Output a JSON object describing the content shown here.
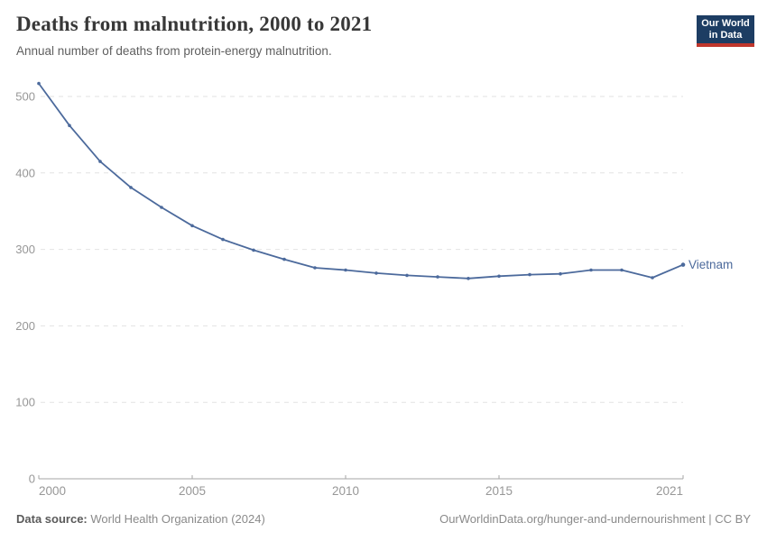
{
  "header": {
    "title": "Deaths from malnutrition, 2000 to 2021",
    "subtitle": "Annual number of deaths from protein-energy malnutrition."
  },
  "logo": {
    "line1": "Our World",
    "line2": "in Data",
    "bg_color": "#1d3d63",
    "stripe_color": "#c0362c"
  },
  "chart_data": {
    "type": "line",
    "title": "Deaths from malnutrition, 2000 to 2021",
    "subtitle": "Annual number of deaths from protein-energy malnutrition.",
    "xlabel": "",
    "ylabel": "",
    "x": [
      2000,
      2001,
      2002,
      2003,
      2004,
      2005,
      2006,
      2007,
      2008,
      2009,
      2010,
      2011,
      2012,
      2013,
      2014,
      2015,
      2016,
      2017,
      2018,
      2019,
      2020,
      2021
    ],
    "series": [
      {
        "name": "Vietnam",
        "color": "#4C6A9C",
        "values": [
          517,
          462,
          415,
          381,
          355,
          331,
          313,
          299,
          287,
          276,
          273,
          269,
          266,
          264,
          262,
          265,
          267,
          268,
          273,
          273,
          263,
          280
        ]
      }
    ],
    "xlim": [
      2000,
      2021
    ],
    "ylim": [
      0,
      540
    ],
    "x_ticks": [
      2000,
      2005,
      2010,
      2015,
      2021
    ],
    "y_ticks": [
      0,
      100,
      200,
      300,
      400,
      500
    ],
    "grid": "horizontal-dashed",
    "legend_position": "line-end-label",
    "colors": {
      "grid_line": "#e2e2e2",
      "axis_line": "#a5a5a5",
      "tick_label": "#979797"
    }
  },
  "footer": {
    "datasource_label": "Data source:",
    "datasource_value": " World Health Organization (2024)",
    "credit": "OurWorldinData.org/hunger-and-undernourishment | CC BY"
  }
}
